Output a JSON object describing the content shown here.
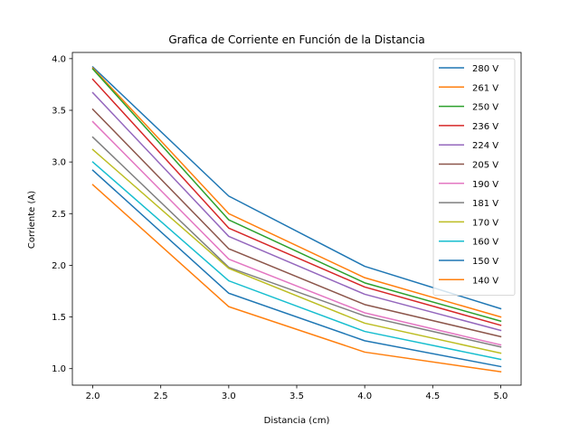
{
  "chart_data": {
    "type": "line",
    "title": "Grafica de Corriente en Función de la Distancia",
    "xlabel": "Distancia (cm)",
    "ylabel": "Corriente (A)",
    "xlim": [
      1.85,
      5.15
    ],
    "ylim": [
      0.84,
      4.06
    ],
    "xticks": [
      2.0,
      2.5,
      3.0,
      3.5,
      4.0,
      4.5,
      5.0
    ],
    "xtick_labels": [
      "2.0",
      "2.5",
      "3.0",
      "3.5",
      "4.0",
      "4.5",
      "5.0"
    ],
    "yticks": [
      1.0,
      1.5,
      2.0,
      2.5,
      3.0,
      3.5,
      4.0
    ],
    "ytick_labels": [
      "1.0",
      "1.5",
      "2.0",
      "2.5",
      "3.0",
      "3.5",
      "4.0"
    ],
    "grid": false,
    "legend_position": "top-right",
    "x": [
      2,
      3,
      4,
      5
    ],
    "series": [
      {
        "name": "280 V",
        "color": "#1f77b4",
        "values": [
          3.92,
          2.67,
          1.99,
          1.58
        ]
      },
      {
        "name": "261 V",
        "color": "#ff7f0e",
        "values": [
          3.91,
          2.5,
          1.88,
          1.5
        ]
      },
      {
        "name": "250 V",
        "color": "#2ca02c",
        "values": [
          3.9,
          2.44,
          1.83,
          1.46
        ]
      },
      {
        "name": "236 V",
        "color": "#d62728",
        "values": [
          3.8,
          2.36,
          1.79,
          1.42
        ]
      },
      {
        "name": "224 V",
        "color": "#9467bd",
        "values": [
          3.67,
          2.28,
          1.72,
          1.37
        ]
      },
      {
        "name": "205 V",
        "color": "#8c564b",
        "values": [
          3.51,
          2.16,
          1.62,
          1.31
        ]
      },
      {
        "name": "190 V",
        "color": "#e377c2",
        "values": [
          3.39,
          2.06,
          1.54,
          1.23
        ]
      },
      {
        "name": "181 V",
        "color": "#7f7f7f",
        "values": [
          3.24,
          1.98,
          1.51,
          1.21
        ]
      },
      {
        "name": "170 V",
        "color": "#bcbd22",
        "values": [
          3.12,
          1.97,
          1.44,
          1.15
        ]
      },
      {
        "name": "160 V",
        "color": "#17becf",
        "values": [
          3.0,
          1.85,
          1.36,
          1.09
        ]
      },
      {
        "name": "150 V",
        "color": "#1f77b4",
        "values": [
          2.92,
          1.73,
          1.27,
          1.02
        ]
      },
      {
        "name": "140 V",
        "color": "#ff7f0e",
        "values": [
          2.78,
          1.6,
          1.16,
          0.97
        ]
      }
    ]
  }
}
